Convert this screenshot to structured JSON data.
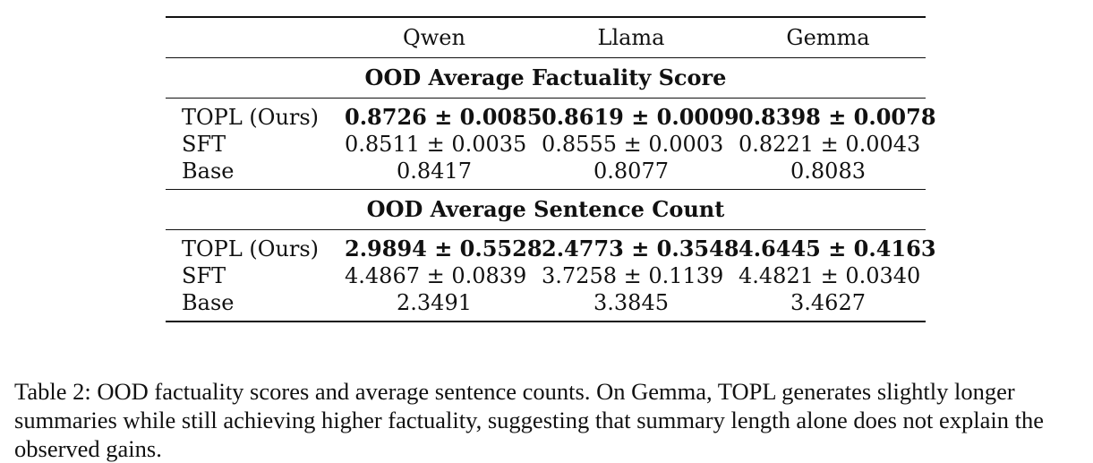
{
  "table": {
    "columns": [
      "Qwen",
      "Llama",
      "Gemma"
    ],
    "sections": [
      {
        "title": "OOD Average Factuality Score",
        "rows": [
          {
            "label": "TOPL (Ours)",
            "bold": true,
            "values": [
              "0.8726 ± 0.0085",
              "0.8619 ± 0.0009",
              "0.8398 ± 0.0078"
            ]
          },
          {
            "label": "SFT",
            "bold": false,
            "values": [
              "0.8511 ± 0.0035",
              "0.8555 ± 0.0003",
              "0.8221 ± 0.0043"
            ]
          },
          {
            "label": "Base",
            "bold": false,
            "values": [
              "0.8417",
              "0.8077",
              "0.8083"
            ]
          }
        ]
      },
      {
        "title": "OOD Average Sentence Count",
        "rows": [
          {
            "label": "TOPL (Ours)",
            "bold": true,
            "values": [
              "2.9894 ± 0.5528",
              "2.4773 ± 0.3548",
              "4.6445 ± 0.4163"
            ]
          },
          {
            "label": "SFT",
            "bold": false,
            "values": [
              "4.4867 ± 0.0839",
              "3.7258 ± 0.1139",
              "4.4821 ± 0.0340"
            ]
          },
          {
            "label": "Base",
            "bold": false,
            "values": [
              "2.3491",
              "3.3845",
              "3.4627"
            ]
          }
        ]
      }
    ]
  },
  "caption": "Table 2: OOD factuality scores and average sentence counts. On Gemma, TOPL generates slightly longer summaries while still achieving higher factuality, suggesting that summary length alone does not explain the observed gains."
}
